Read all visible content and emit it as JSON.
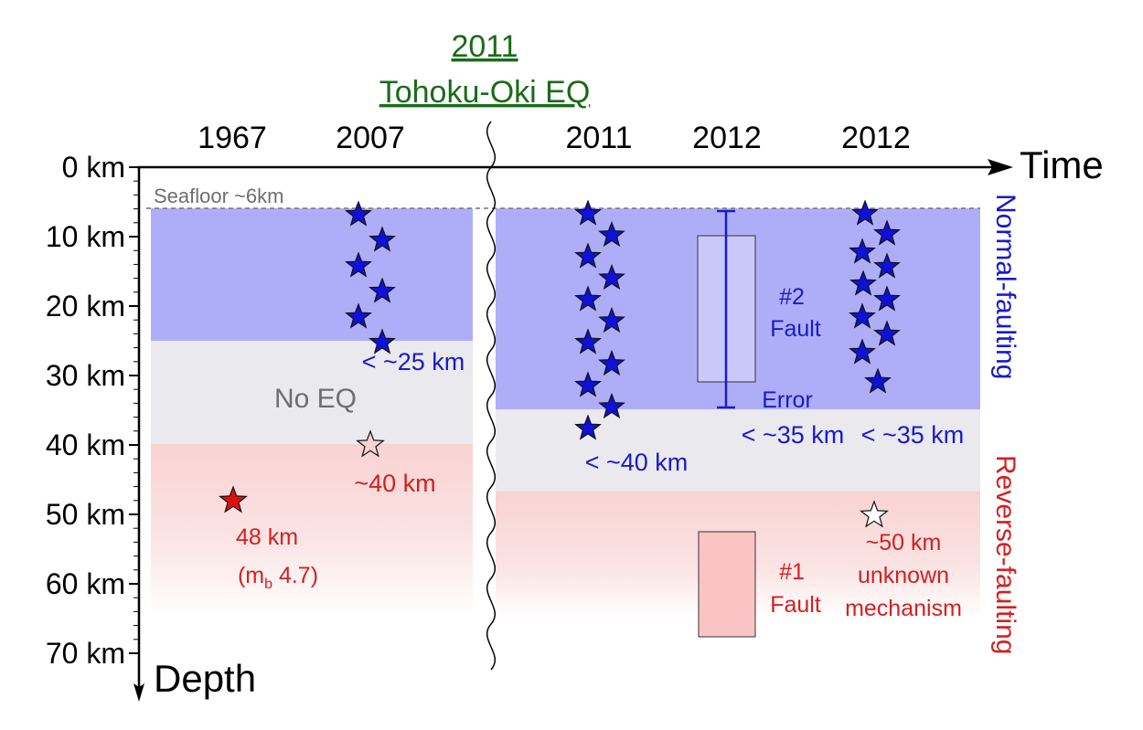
{
  "header": {
    "event_year": "2011",
    "event_name": "Tohoku-Oki EQ",
    "event_color": "#1a6b1a"
  },
  "years": [
    "1967",
    "2007",
    "2011",
    "2012",
    "2012"
  ],
  "axes": {
    "time_label": "Time",
    "depth_label": "Depth",
    "depth_ticks": [
      "0 km",
      "10 km",
      "20 km",
      "30 km",
      "40 km",
      "50 km",
      "60 km",
      "70 km"
    ]
  },
  "seafloor_label": "Seafloor ~6km",
  "left_panel": {
    "no_eq_label": "No EQ",
    "normal_limit_label": "< ~25 km",
    "eq_2007_label": "~40 km",
    "eq_1967_depth_label": "48 km",
    "eq_1967_mag_label_prefix": "(m",
    "eq_1967_mag_label_sub": "b",
    "eq_1967_mag_label_suffix": " 4.7)"
  },
  "right_panel": {
    "limit_2011_label": "< ~40 km",
    "fault2_num": "#2",
    "fault2_word": "Fault",
    "error_label": "Error",
    "limit_2012a_label": "< ~35 km",
    "limit_2012b_label": "< ~35 km",
    "fault1_num": "#1",
    "fault1_word": "Fault",
    "unknown_depth_label": "~50 km",
    "unknown_line1": "unknown",
    "unknown_line2": "mechanism"
  },
  "side_labels": {
    "normal": "Normal-faulting",
    "reverse": "Reverse-faulting"
  },
  "colors": {
    "normal_zone": "#aeaef8",
    "gap_zone": "#e9e9ee",
    "reverse_zone": "#f9d2d2",
    "blue_text": "#1a1ac8",
    "red_text": "#d42020",
    "star_blue": "#1010d8",
    "star_red": "#e01010",
    "gray_text": "#6e6e6e"
  },
  "stars": {
    "col_2007": 6,
    "col_2011": 11,
    "col_2012": 10
  }
}
